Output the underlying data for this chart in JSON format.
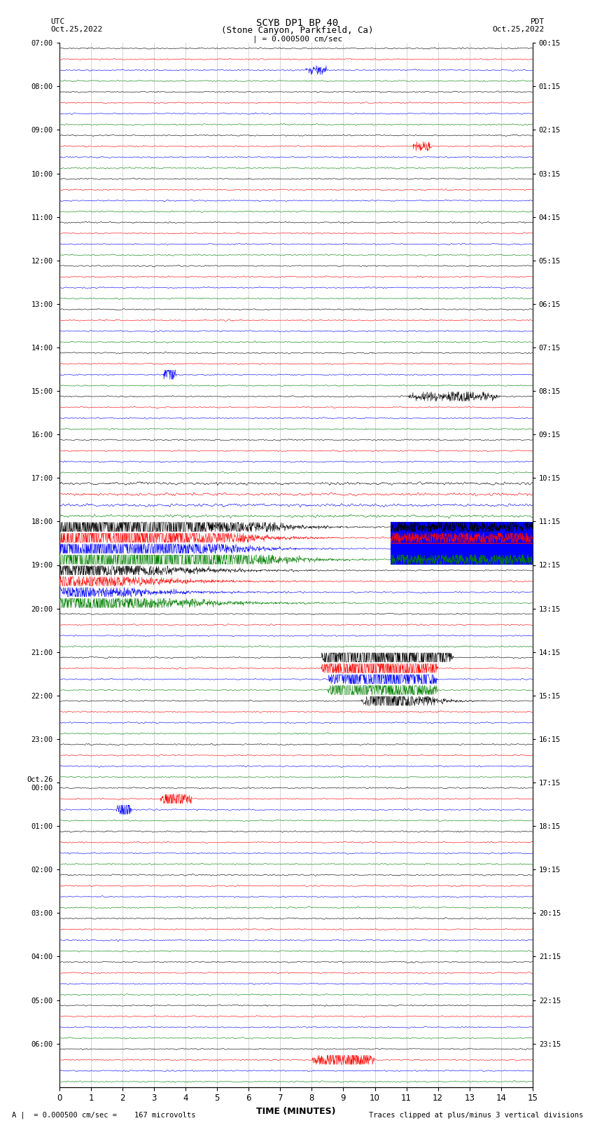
{
  "title_line1": "SCYB DP1 BP 40",
  "title_line2": "(Stone Canyon, Parkfield, Ca)",
  "scale_label": "| = 0.000500 cm/sec",
  "left_label_line1": "UTC",
  "left_label_line2": "Oct.25,2022",
  "right_label_line1": "PDT",
  "right_label_line2": "Oct.25,2022",
  "bottom_label1": "A |  = 0.000500 cm/sec =    167 microvolts",
  "bottom_label2": "Traces clipped at plus/minus 3 vertical divisions",
  "xlabel": "TIME (MINUTES)",
  "xticks": [
    0,
    1,
    2,
    3,
    4,
    5,
    6,
    7,
    8,
    9,
    10,
    11,
    12,
    13,
    14,
    15
  ],
  "utc_labels": [
    "07:00",
    "08:00",
    "09:00",
    "10:00",
    "11:00",
    "12:00",
    "13:00",
    "14:00",
    "15:00",
    "16:00",
    "17:00",
    "18:00",
    "19:00",
    "20:00",
    "21:00",
    "22:00",
    "23:00",
    "Oct.26\n00:00",
    "01:00",
    "02:00",
    "03:00",
    "04:00",
    "05:00",
    "06:00"
  ],
  "pdt_labels": [
    "00:15",
    "01:15",
    "02:15",
    "03:15",
    "04:15",
    "05:15",
    "06:15",
    "07:15",
    "08:15",
    "09:15",
    "10:15",
    "11:15",
    "12:15",
    "13:15",
    "14:15",
    "15:15",
    "16:15",
    "17:15",
    "18:15",
    "19:15",
    "20:15",
    "21:15",
    "22:15",
    "23:15"
  ],
  "n_rows": 24,
  "traces_per_row": 4,
  "colors": [
    "black",
    "red",
    "blue",
    "green"
  ],
  "bg_color": "white",
  "noise_amp": 0.06,
  "vline_color": "#888888",
  "vline_alpha": 0.5
}
